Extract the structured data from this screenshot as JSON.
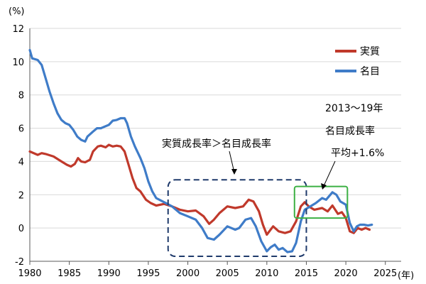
{
  "chart_data": {
    "type": "line",
    "y_unit_label": "(%)",
    "x_unit_label": "(年)",
    "xlim": [
      1980,
      2027
    ],
    "ylim": [
      -2,
      12
    ],
    "x_ticks": [
      1980,
      1985,
      1990,
      1995,
      2000,
      2005,
      2010,
      2015,
      2020,
      2025
    ],
    "y_ticks": [
      -2,
      0,
      2,
      4,
      6,
      8,
      10,
      12
    ],
    "grid": "horizontal",
    "legend_position": "top-right",
    "series": [
      {
        "name": "実質",
        "color": "#c0392b",
        "points": [
          [
            1980.0,
            4.6
          ],
          [
            1981.0,
            4.4
          ],
          [
            1981.5,
            4.5
          ],
          [
            1982.0,
            4.45
          ],
          [
            1983.0,
            4.3
          ],
          [
            1984.0,
            4.0
          ],
          [
            1984.7,
            3.8
          ],
          [
            1985.2,
            3.7
          ],
          [
            1985.7,
            3.85
          ],
          [
            1986.1,
            4.2
          ],
          [
            1986.5,
            4.0
          ],
          [
            1987.0,
            3.95
          ],
          [
            1987.6,
            4.1
          ],
          [
            1988.0,
            4.6
          ],
          [
            1988.6,
            4.9
          ],
          [
            1989.0,
            4.95
          ],
          [
            1989.6,
            4.85
          ],
          [
            1990.0,
            5.0
          ],
          [
            1990.5,
            4.9
          ],
          [
            1991.0,
            4.95
          ],
          [
            1991.5,
            4.9
          ],
          [
            1992.0,
            4.6
          ],
          [
            1992.5,
            3.8
          ],
          [
            1993.0,
            3.0
          ],
          [
            1993.5,
            2.4
          ],
          [
            1994.0,
            2.2
          ],
          [
            1994.7,
            1.7
          ],
          [
            1995.3,
            1.5
          ],
          [
            1996.0,
            1.35
          ],
          [
            1997.0,
            1.45
          ],
          [
            1998.0,
            1.3
          ],
          [
            1999.0,
            1.1
          ],
          [
            2000.0,
            1.0
          ],
          [
            2001.0,
            1.05
          ],
          [
            2002.0,
            0.7
          ],
          [
            2002.7,
            0.25
          ],
          [
            2003.3,
            0.5
          ],
          [
            2004.0,
            0.9
          ],
          [
            2005.0,
            1.3
          ],
          [
            2006.0,
            1.2
          ],
          [
            2007.0,
            1.3
          ],
          [
            2007.7,
            1.7
          ],
          [
            2008.3,
            1.6
          ],
          [
            2009.0,
            1.0
          ],
          [
            2009.5,
            0.2
          ],
          [
            2010.0,
            -0.4
          ],
          [
            2010.8,
            0.1
          ],
          [
            2011.5,
            -0.2
          ],
          [
            2012.3,
            -0.3
          ],
          [
            2013.0,
            -0.2
          ],
          [
            2013.7,
            0.4
          ],
          [
            2014.3,
            1.3
          ],
          [
            2014.8,
            1.55
          ],
          [
            2015.3,
            1.3
          ],
          [
            2016.0,
            1.1
          ],
          [
            2017.0,
            1.2
          ],
          [
            2017.7,
            1.0
          ],
          [
            2018.3,
            1.35
          ],
          [
            2019.0,
            0.85
          ],
          [
            2019.5,
            0.95
          ],
          [
            2020.0,
            0.6
          ],
          [
            2020.5,
            -0.2
          ],
          [
            2021.0,
            -0.3
          ],
          [
            2021.5,
            0.0
          ],
          [
            2022.0,
            -0.1
          ],
          [
            2022.5,
            0.0
          ],
          [
            2023.0,
            -0.1
          ]
        ]
      },
      {
        "name": "名目",
        "color": "#3f7cc8",
        "points": [
          [
            1980.0,
            10.7
          ],
          [
            1980.3,
            10.2
          ],
          [
            1981.0,
            10.1
          ],
          [
            1981.5,
            9.8
          ],
          [
            1982.0,
            9.0
          ],
          [
            1982.5,
            8.2
          ],
          [
            1983.0,
            7.5
          ],
          [
            1983.5,
            6.9
          ],
          [
            1984.0,
            6.5
          ],
          [
            1984.5,
            6.3
          ],
          [
            1985.0,
            6.2
          ],
          [
            1985.5,
            5.9
          ],
          [
            1986.0,
            5.5
          ],
          [
            1986.5,
            5.3
          ],
          [
            1987.0,
            5.2
          ],
          [
            1987.3,
            5.5
          ],
          [
            1988.0,
            5.8
          ],
          [
            1988.5,
            6.0
          ],
          [
            1989.0,
            6.0
          ],
          [
            1989.5,
            6.1
          ],
          [
            1990.0,
            6.2
          ],
          [
            1990.5,
            6.45
          ],
          [
            1991.0,
            6.5
          ],
          [
            1991.5,
            6.6
          ],
          [
            1992.0,
            6.6
          ],
          [
            1992.3,
            6.3
          ],
          [
            1992.8,
            5.5
          ],
          [
            1993.3,
            4.9
          ],
          [
            1994.0,
            4.2
          ],
          [
            1994.5,
            3.6
          ],
          [
            1995.0,
            2.8
          ],
          [
            1995.5,
            2.2
          ],
          [
            1996.0,
            1.8
          ],
          [
            1997.0,
            1.55
          ],
          [
            1998.0,
            1.3
          ],
          [
            1999.0,
            0.9
          ],
          [
            2000.0,
            0.7
          ],
          [
            2001.0,
            0.5
          ],
          [
            2001.8,
            0.0
          ],
          [
            2002.5,
            -0.6
          ],
          [
            2003.3,
            -0.7
          ],
          [
            2004.0,
            -0.4
          ],
          [
            2005.0,
            0.1
          ],
          [
            2006.0,
            -0.1
          ],
          [
            2006.5,
            0.0
          ],
          [
            2007.3,
            0.5
          ],
          [
            2008.0,
            0.6
          ],
          [
            2008.6,
            0.1
          ],
          [
            2009.3,
            -0.8
          ],
          [
            2010.0,
            -1.4
          ],
          [
            2010.5,
            -1.15
          ],
          [
            2011.0,
            -1.0
          ],
          [
            2011.5,
            -1.3
          ],
          [
            2012.0,
            -1.2
          ],
          [
            2012.6,
            -1.45
          ],
          [
            2013.2,
            -1.4
          ],
          [
            2013.7,
            -0.9
          ],
          [
            2014.3,
            0.4
          ],
          [
            2014.8,
            1.1
          ],
          [
            2015.5,
            1.3
          ],
          [
            2016.2,
            1.5
          ],
          [
            2017.0,
            1.8
          ],
          [
            2017.5,
            1.7
          ],
          [
            2018.3,
            2.15
          ],
          [
            2018.8,
            2.0
          ],
          [
            2019.3,
            1.6
          ],
          [
            2020.0,
            1.4
          ],
          [
            2020.5,
            0.3
          ],
          [
            2021.0,
            -0.2
          ],
          [
            2021.4,
            0.1
          ],
          [
            2021.8,
            0.2
          ],
          [
            2022.3,
            0.2
          ],
          [
            2022.8,
            0.15
          ],
          [
            2023.3,
            0.2
          ]
        ]
      }
    ],
    "annotations": {
      "comparison_label": "実質成長率＞名目成長率",
      "avg_line1": "2013〜19年",
      "avg_line2": "名目成長率",
      "avg_line3": "平均+1.6%"
    },
    "highlight_dashed_box": {
      "x": [
        1997.5,
        2015.0
      ],
      "y": [
        -1.7,
        2.9
      ],
      "color": "#1f3a6b"
    },
    "highlight_green_box": {
      "x": [
        2013.5,
        2020.2
      ],
      "y": [
        0.6,
        2.5
      ],
      "color": "#3cb043"
    }
  }
}
